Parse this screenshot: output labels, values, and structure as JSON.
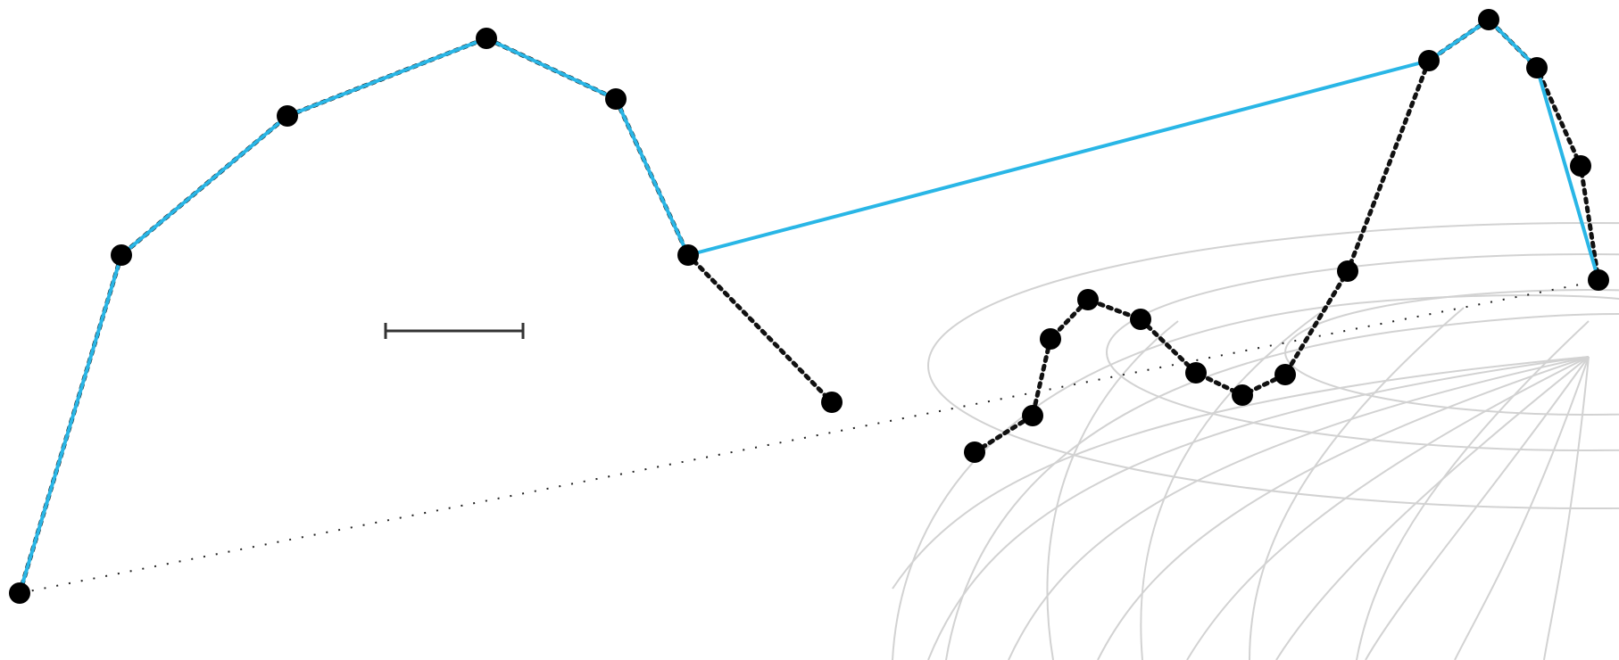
{
  "colors": {
    "background": "#ffffff",
    "solid_route": "#29b6e6",
    "node": "#000000",
    "dotted_route": "#111111",
    "globe_grid": "#d2d2d2",
    "scale_bar": "#333333"
  },
  "elements": {
    "globe": "wireframe-globe",
    "scale_bar": "scale-bar",
    "solid_route": "cyan-solid-route",
    "dotted_route": "black-dotted-route",
    "fine_dotted_route": "fine-dotted-baseline"
  }
}
